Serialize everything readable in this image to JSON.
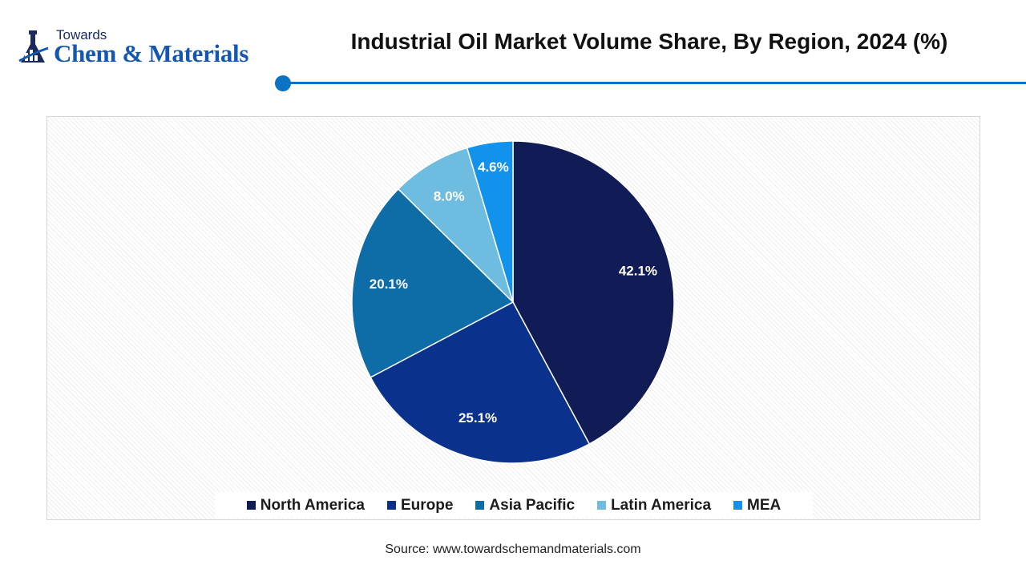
{
  "logo": {
    "top_text": "Towards",
    "main_text": "Chem & Materials"
  },
  "title": "Industrial Oil Market Volume Share, By Region, 2024 (%)",
  "source": "Source: www.towardschemandmaterials.com",
  "colors": {
    "accent": "#0a73c4",
    "logo_blue": "#1556b0"
  },
  "chart_data": {
    "type": "pie",
    "title": "Industrial Oil Market Volume Share, By Region, 2024 (%)",
    "legend_position": "bottom",
    "categories": [
      "North America",
      "Europe",
      "Asia Pacific",
      "Latin America",
      "MEA"
    ],
    "values": [
      42.1,
      25.1,
      20.1,
      8.0,
      4.6
    ],
    "labels": [
      "42.1%",
      "25.1%",
      "20.1%",
      "8.0%",
      "4.6%"
    ],
    "colors": [
      "#111b55",
      "#0a318c",
      "#0e6ca6",
      "#6ebde0",
      "#1192ec"
    ]
  }
}
